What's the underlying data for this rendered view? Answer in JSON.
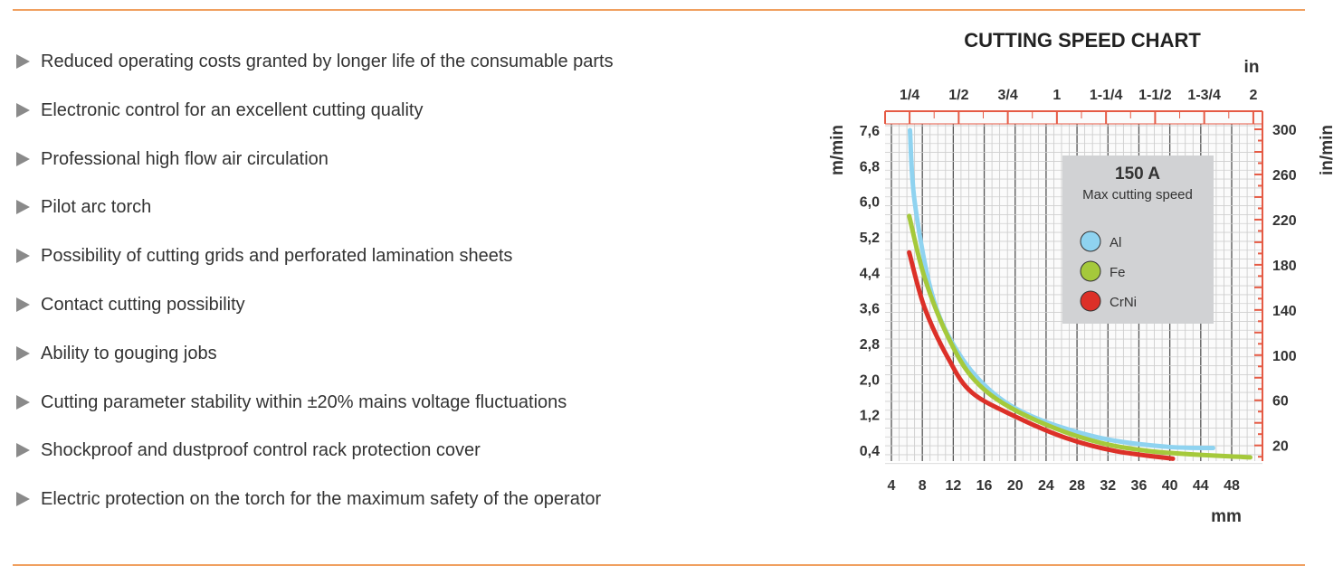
{
  "features": [
    "Reduced operating costs granted by longer life of the consumable parts",
    "Electronic control for an excellent cutting quality",
    "Professional high flow air circulation",
    "Pilot arc torch",
    "Possibility of cutting grids and perforated lamination sheets",
    "Contact cutting possibility",
    "Ability to gouging jobs",
    "Cutting parameter stability within ±20% mains voltage fluctuations",
    "Shockproof and dustproof control rack protection cover",
    "Electric protection on the torch for the maximum safety of the operator"
  ],
  "chart_data": {
    "type": "line",
    "title": "CUTTING SPEED CHART",
    "xlabel": "mm",
    "ylabel": "m/min",
    "y2label": "in/min",
    "x2label": "in",
    "xlim": [
      4,
      52
    ],
    "ylim": [
      0,
      8
    ],
    "xticks": [
      "4",
      "8",
      "12",
      "16",
      "20",
      "24",
      "28",
      "32",
      "36",
      "40",
      "44",
      "48"
    ],
    "yticks": [
      "0,4",
      "1,2",
      "2,0",
      "2,8",
      "3,6",
      "4,4",
      "5,2",
      "6,0",
      "6,8",
      "7,6"
    ],
    "y2ticks": [
      "20",
      "60",
      "100",
      "140",
      "180",
      "220",
      "260",
      "300"
    ],
    "x2ticks": [
      {
        "label": "1/4",
        "mm": 6.35
      },
      {
        "label": "1/2",
        "mm": 12.7
      },
      {
        "label": "3/4",
        "mm": 19.05
      },
      {
        "label": "1",
        "mm": 25.4
      },
      {
        "label": "1-1/4",
        "mm": 31.75
      },
      {
        "label": "1-1/2",
        "mm": 38.1
      },
      {
        "label": "1-3/4",
        "mm": 44.45
      },
      {
        "label": "2",
        "mm": 50.8
      }
    ],
    "legend": {
      "title": "150 A",
      "subtitle": "Max cutting speed",
      "placement": "top-right"
    },
    "series": [
      {
        "name": "Al",
        "color": "#8fd3f0",
        "x": [
          6.4,
          7.0,
          9.2,
          12.2,
          16.6,
          22.2,
          30.9,
          39.5,
          45.6
        ],
        "y": [
          7.6,
          6.0,
          3.94,
          2.72,
          1.77,
          1.16,
          0.68,
          0.48,
          0.45
        ]
      },
      {
        "name": "Fe",
        "color": "#a5c93b",
        "x": [
          6.3,
          8.3,
          11.4,
          14.8,
          20,
          28.7,
          37.4,
          50.4
        ],
        "y": [
          5.67,
          4.28,
          2.92,
          1.97,
          1.3,
          0.68,
          0.38,
          0.24
        ]
      },
      {
        "name": "CrNi",
        "color": "#dc3028",
        "x": [
          6.3,
          8.3,
          11.4,
          14.4,
          20,
          26.5,
          33,
          40.4
        ],
        "y": [
          4.85,
          3.6,
          2.45,
          1.7,
          1.16,
          0.68,
          0.38,
          0.21
        ]
      }
    ]
  }
}
